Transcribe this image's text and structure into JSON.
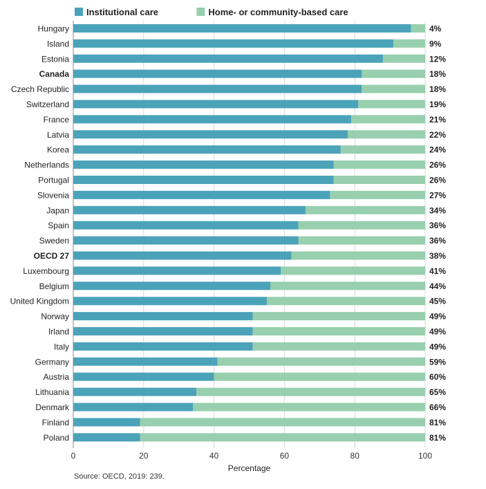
{
  "chart_data": {
    "type": "bar",
    "orientation": "horizontal",
    "stacked": true,
    "xlabel": "Percentage",
    "xlim": [
      0,
      100
    ],
    "xticks": [
      0,
      20,
      40,
      60,
      80,
      100
    ],
    "grid": true,
    "legend_position": "top",
    "categories": [
      "Hungary",
      "Island",
      "Estonia",
      "Canada",
      "Czech Republic",
      "Switzerland",
      "France",
      "Latvia",
      "Korea",
      "Netherlands",
      "Portugal",
      "Slovenia",
      "Japan",
      "Spain",
      "Sweden",
      "OECD 27",
      "Luxembourg",
      "Belgium",
      "United Kingdom",
      "Norway",
      "Irland",
      "Italy",
      "Germany",
      "Austria",
      "Lithuania",
      "Denmark",
      "Finland",
      "Poland"
    ],
    "bold_categories": [
      "Canada",
      "OECD 27"
    ],
    "series": [
      {
        "name": "Institutional care",
        "color": "#4ba3b9",
        "values": [
          96,
          91,
          88,
          82,
          82,
          81,
          79,
          78,
          76,
          74,
          74,
          73,
          66,
          64,
          64,
          62,
          59,
          56,
          55,
          51,
          51,
          51,
          41,
          40,
          35,
          34,
          19,
          19
        ]
      },
      {
        "name": "Home- or community-based care",
        "color": "#98cfae",
        "values": [
          4,
          9,
          12,
          18,
          18,
          19,
          21,
          22,
          24,
          26,
          26,
          27,
          34,
          36,
          36,
          38,
          41,
          44,
          45,
          49,
          49,
          49,
          59,
          60,
          65,
          66,
          81,
          81
        ]
      }
    ],
    "value_labels": [
      "4%",
      "9%",
      "12%",
      "18%",
      "18%",
      "19%",
      "21%",
      "22%",
      "24%",
      "26%",
      "26%",
      "27%",
      "34%",
      "36%",
      "36%",
      "38%",
      "41%",
      "44%",
      "45%",
      "49%",
      "49%",
      "49%",
      "59%",
      "60%",
      "65%",
      "66%",
      "81%",
      "81%"
    ]
  },
  "source": "Source: OECD, 2019: 239."
}
